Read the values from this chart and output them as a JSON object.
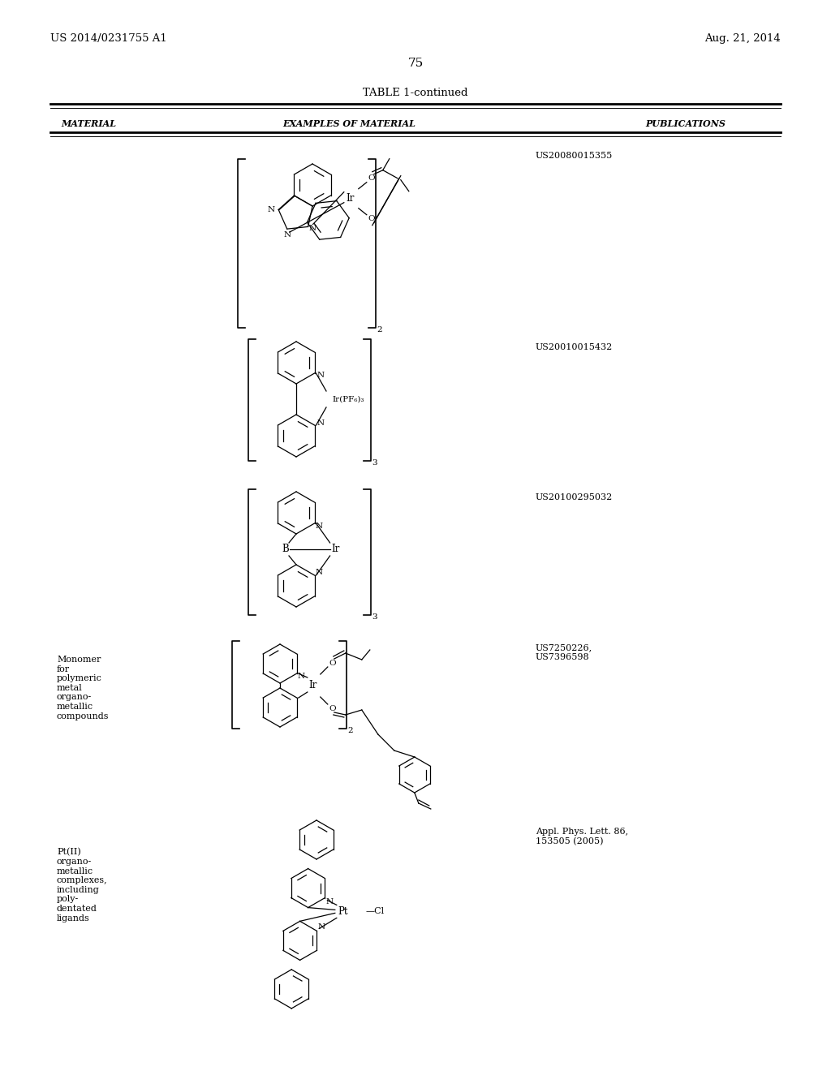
{
  "bg_color": "#ffffff",
  "header_left": "US 2014/0231755 A1",
  "header_right": "Aug. 21, 2014",
  "page_number": "75",
  "table_title": "TABLE 1-continued",
  "col1_header": "MATERIAL",
  "col2_header": "EXAMPLES OF MATERIAL",
  "col3_header": "PUBLICATIONS",
  "rows": [
    {
      "material": "",
      "publication": "US20080015355"
    },
    {
      "material": "",
      "publication": "US20010015432"
    },
    {
      "material": "",
      "publication": "US20100295032"
    },
    {
      "material": "Monomer\nfor\npolymeric\nmetal\norgano-\nmetallic\ncompounds",
      "publication": "US7250226,\nUS7396598"
    },
    {
      "material": "Pt(II)\norgano-\nmetallic\ncomplexes,\nincluding\npoly-\ndentated\nligands",
      "publication": "Appl. Phys. Lett. 86,\n153505 (2005)"
    }
  ],
  "line_color": "#000000",
  "font_color": "#000000"
}
